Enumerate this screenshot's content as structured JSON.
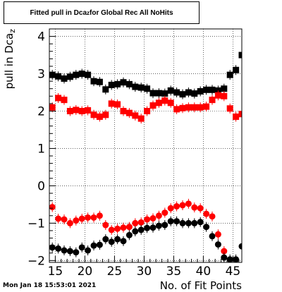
{
  "title": {
    "main": "Fitted pull in Dca",
    "sub": "z",
    "rest": " for Global Rec All NoHits"
  },
  "footer": "Mon Jan 18 15:53:01 2021",
  "colors": {
    "series_black": "#000000",
    "series_red": "#ff0000",
    "grid": "#000000"
  },
  "chart_data": {
    "type": "scatter",
    "xlabel": "No. of Fit Points",
    "ylabel_main": "pull in Dca",
    "ylabel_sub": "z",
    "xlim": [
      14,
      46.5
    ],
    "ylim": [
      -2.05,
      4.2
    ],
    "xticks": [
      15,
      20,
      25,
      30,
      35,
      40,
      45
    ],
    "yticks": [
      -2,
      -1,
      0,
      1,
      2,
      3,
      4
    ],
    "grid": true,
    "series": [
      {
        "color": "#000000",
        "points": [
          [
            14.5,
            2.97
          ],
          [
            15.5,
            2.93
          ],
          [
            16.5,
            2.87
          ],
          [
            17.5,
            2.92
          ],
          [
            18.5,
            2.97
          ],
          [
            19.5,
            3.0
          ],
          [
            20.5,
            2.97
          ],
          [
            21.5,
            2.8
          ],
          [
            22.5,
            2.78
          ],
          [
            23.5,
            2.58
          ],
          [
            24.5,
            2.7
          ],
          [
            25.5,
            2.72
          ],
          [
            26.5,
            2.77
          ],
          [
            27.5,
            2.72
          ],
          [
            28.5,
            2.65
          ],
          [
            29.5,
            2.63
          ],
          [
            30.5,
            2.6
          ],
          [
            31.5,
            2.48
          ],
          [
            32.5,
            2.48
          ],
          [
            33.5,
            2.47
          ],
          [
            34.5,
            2.55
          ],
          [
            35.5,
            2.5
          ],
          [
            36.5,
            2.45
          ],
          [
            37.5,
            2.5
          ],
          [
            38.5,
            2.47
          ],
          [
            39.5,
            2.53
          ],
          [
            40.5,
            2.57
          ],
          [
            41.5,
            2.57
          ],
          [
            42.5,
            2.55
          ],
          [
            43.5,
            2.6
          ],
          [
            44.5,
            2.97
          ],
          [
            45.5,
            3.1
          ],
          [
            46.5,
            3.5
          ]
        ]
      },
      {
        "color": "#ff0000",
        "points": [
          [
            14.5,
            2.1
          ],
          [
            15.5,
            2.35
          ],
          [
            16.5,
            2.3
          ],
          [
            17.5,
            2.0
          ],
          [
            18.5,
            2.03
          ],
          [
            19.5,
            2.0
          ],
          [
            20.5,
            2.02
          ],
          [
            21.5,
            1.9
          ],
          [
            22.5,
            1.85
          ],
          [
            23.5,
            1.9
          ],
          [
            24.5,
            2.2
          ],
          [
            25.5,
            2.18
          ],
          [
            26.5,
            2.0
          ],
          [
            27.5,
            1.95
          ],
          [
            28.5,
            1.88
          ],
          [
            29.5,
            1.8
          ],
          [
            30.5,
            2.0
          ],
          [
            31.5,
            2.15
          ],
          [
            32.5,
            2.22
          ],
          [
            33.5,
            2.28
          ],
          [
            34.5,
            2.22
          ],
          [
            35.5,
            2.05
          ],
          [
            36.5,
            2.08
          ],
          [
            37.5,
            2.1
          ],
          [
            38.5,
            2.1
          ],
          [
            39.5,
            2.1
          ],
          [
            40.5,
            2.12
          ],
          [
            41.5,
            2.3
          ],
          [
            42.5,
            2.42
          ],
          [
            43.5,
            2.4
          ],
          [
            44.5,
            2.07
          ],
          [
            45.5,
            1.85
          ],
          [
            46.5,
            1.92
          ]
        ]
      },
      {
        "color": "#ff0000",
        "points": [
          [
            14.5,
            -0.57
          ],
          [
            15.5,
            -0.88
          ],
          [
            16.5,
            -0.9
          ],
          [
            17.5,
            -1.0
          ],
          [
            18.5,
            -0.93
          ],
          [
            19.5,
            -0.88
          ],
          [
            20.5,
            -0.85
          ],
          [
            21.5,
            -0.85
          ],
          [
            22.5,
            -0.8
          ],
          [
            23.5,
            -1.05
          ],
          [
            24.5,
            -1.18
          ],
          [
            25.5,
            -1.15
          ],
          [
            26.5,
            -1.12
          ],
          [
            27.5,
            -1.1
          ],
          [
            28.5,
            -1.0
          ],
          [
            29.5,
            -0.98
          ],
          [
            30.5,
            -0.9
          ],
          [
            31.5,
            -0.87
          ],
          [
            32.5,
            -0.8
          ],
          [
            33.5,
            -0.72
          ],
          [
            34.5,
            -0.6
          ],
          [
            35.5,
            -0.55
          ],
          [
            36.5,
            -0.52
          ],
          [
            37.5,
            -0.48
          ],
          [
            38.5,
            -0.58
          ],
          [
            39.5,
            -0.6
          ],
          [
            40.5,
            -0.75
          ],
          [
            41.5,
            -0.82
          ],
          [
            42.5,
            -1.3
          ],
          [
            43.5,
            -1.75
          ]
        ]
      },
      {
        "color": "#000000",
        "points": [
          [
            14.5,
            -1.65
          ],
          [
            15.5,
            -1.68
          ],
          [
            16.5,
            -1.73
          ],
          [
            17.5,
            -1.75
          ],
          [
            18.5,
            -1.78
          ],
          [
            19.5,
            -1.65
          ],
          [
            20.5,
            -1.73
          ],
          [
            21.5,
            -1.6
          ],
          [
            22.5,
            -1.58
          ],
          [
            23.5,
            -1.43
          ],
          [
            24.5,
            -1.5
          ],
          [
            25.5,
            -1.43
          ],
          [
            26.5,
            -1.48
          ],
          [
            27.5,
            -1.32
          ],
          [
            28.5,
            -1.22
          ],
          [
            29.5,
            -1.18
          ],
          [
            30.5,
            -1.13
          ],
          [
            31.5,
            -1.12
          ],
          [
            32.5,
            -1.07
          ],
          [
            33.5,
            -1.05
          ],
          [
            34.5,
            -0.95
          ],
          [
            35.5,
            -0.95
          ],
          [
            36.5,
            -1.0
          ],
          [
            37.5,
            -1.0
          ],
          [
            38.5,
            -1.0
          ],
          [
            39.5,
            -0.97
          ],
          [
            40.5,
            -1.1
          ],
          [
            41.5,
            -1.35
          ],
          [
            42.5,
            -1.57
          ],
          [
            43.5,
            -1.92
          ],
          [
            44.5,
            -1.97
          ],
          [
            45.5,
            -1.97
          ],
          [
            46.5,
            -1.62
          ]
        ]
      }
    ]
  }
}
